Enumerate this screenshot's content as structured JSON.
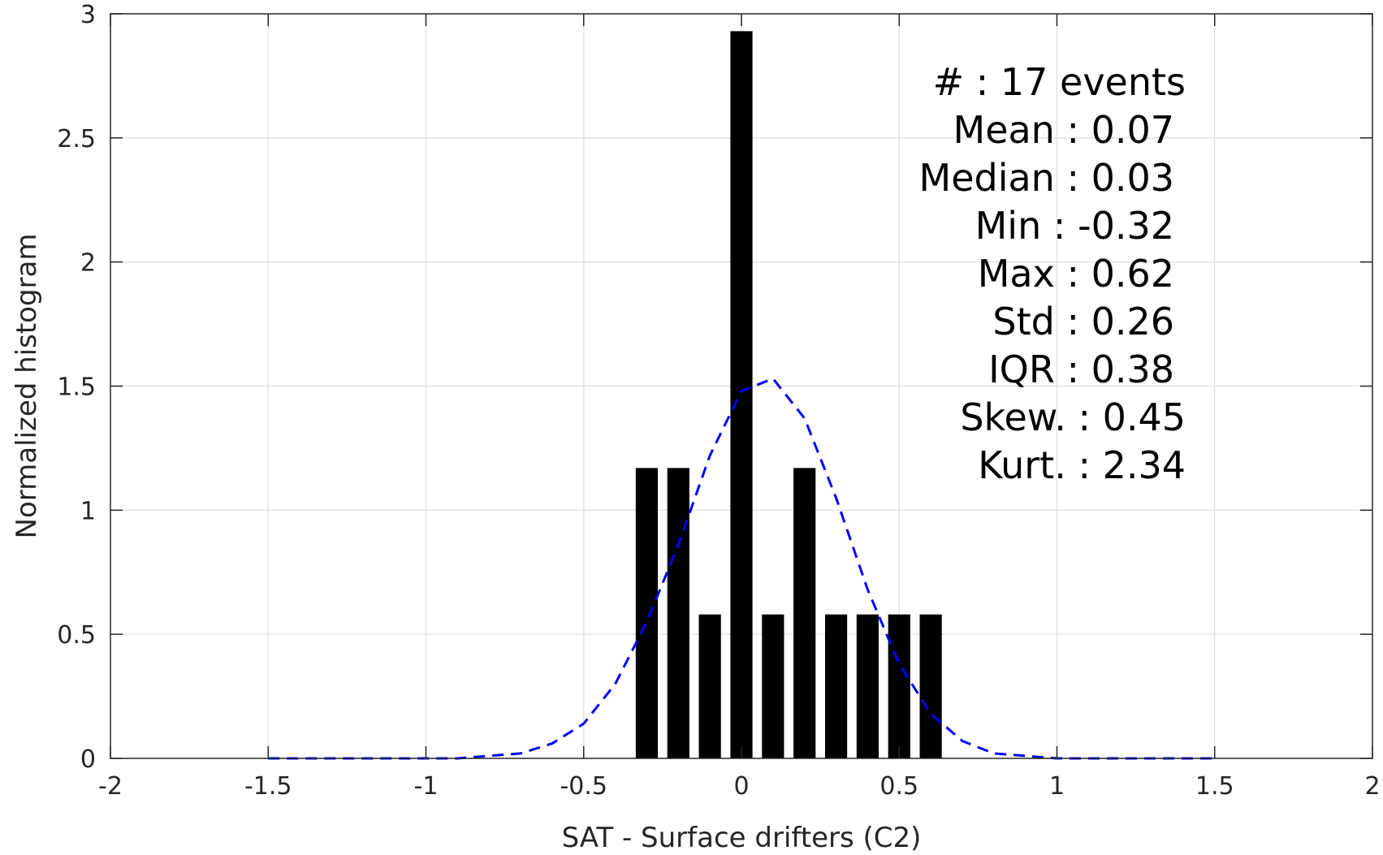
{
  "chart_data": {
    "type": "bar",
    "xlabel": "SAT - Surface drifters (C2)",
    "ylabel": "Normalized histogram",
    "xlim": [
      -2,
      2
    ],
    "ylim": [
      0,
      3
    ],
    "grid": true,
    "x_ticks": [
      "-2",
      "-1.5",
      "-1",
      "-0.5",
      "0",
      "0.5",
      "1",
      "1.5",
      "2"
    ],
    "y_ticks": [
      "0",
      "0.5",
      "1",
      "1.5",
      "2",
      "2.5",
      "3"
    ],
    "bin_width": 0.07,
    "bars": [
      {
        "x": -0.3,
        "y": 1.17
      },
      {
        "x": -0.2,
        "y": 1.17
      },
      {
        "x": -0.1,
        "y": 0.58
      },
      {
        "x": 0.0,
        "y": 2.93
      },
      {
        "x": 0.1,
        "y": 0.58
      },
      {
        "x": 0.2,
        "y": 1.17
      },
      {
        "x": 0.3,
        "y": 0.58
      },
      {
        "x": 0.4,
        "y": 0.58
      },
      {
        "x": 0.5,
        "y": 0.58
      },
      {
        "x": 0.6,
        "y": 0.58
      }
    ],
    "fit_curve": {
      "style": "dashed",
      "x": [
        -1.5,
        -1.4,
        -1.3,
        -1.2,
        -1.1,
        -1.0,
        -0.9,
        -0.8,
        -0.7,
        -0.6,
        -0.5,
        -0.4,
        -0.3,
        -0.2,
        -0.1,
        0.0,
        0.1,
        0.2,
        0.3,
        0.4,
        0.5,
        0.6,
        0.7,
        0.8,
        0.9,
        1.0,
        1.1,
        1.2,
        1.3,
        1.4,
        1.5
      ],
      "y": [
        0.0,
        0.0,
        0.0,
        0.0,
        0.0,
        0.0,
        0.0,
        0.01,
        0.02,
        0.06,
        0.14,
        0.3,
        0.55,
        0.86,
        1.22,
        1.48,
        1.53,
        1.37,
        1.05,
        0.68,
        0.38,
        0.18,
        0.07,
        0.02,
        0.01,
        0.0,
        0.0,
        0.0,
        0.0,
        0.0,
        0.0
      ]
    },
    "annotation": [
      "#  : 17 events",
      "Mean : 0.07",
      "Median : 0.03",
      "Min : -0.32",
      "Max : 0.62",
      "Std : 0.26",
      "IQR : 0.38",
      "Skew. : 0.45",
      "Kurt. : 2.34"
    ],
    "colors": {
      "bars": "#000000",
      "fit_curve": "#0000ff",
      "grid": "#e3e3e3",
      "axis": "#262626"
    }
  }
}
